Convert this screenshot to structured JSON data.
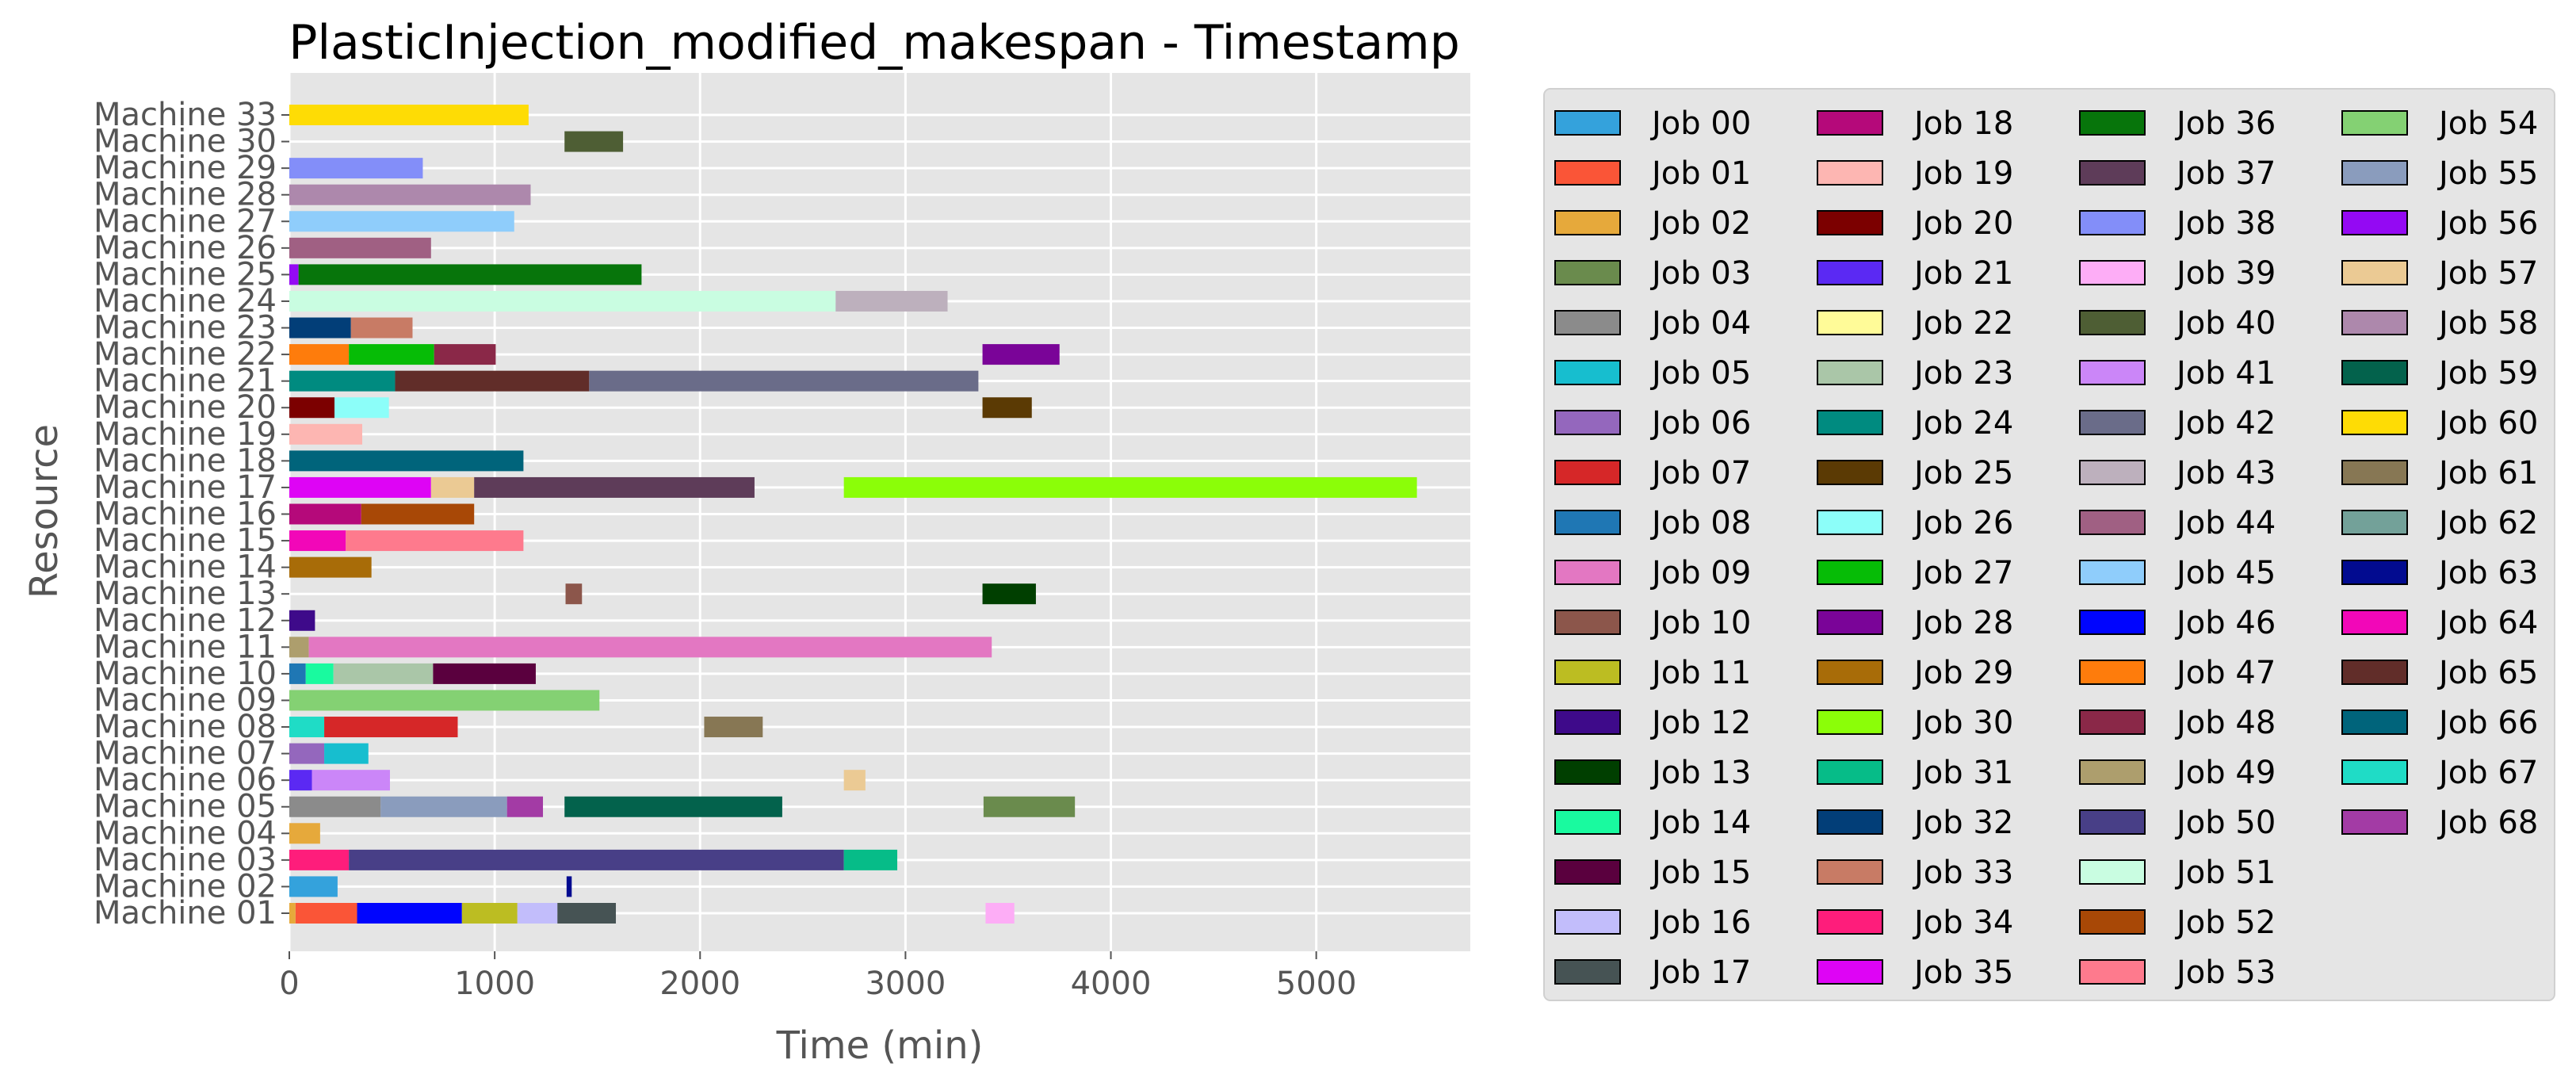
{
  "chart_data": {
    "type": "gantt",
    "title": "PlasticInjection_modified_makespan - Timestamp",
    "xlabel": "Time (min)",
    "ylabel": "Resource",
    "xlim": [
      0,
      5750
    ],
    "xticks": [
      "0",
      "1000",
      "2000",
      "3000",
      "4000",
      "5000"
    ],
    "grid": true,
    "legend_placement": "right",
    "resources": [
      "Machine 01",
      "Machine 02",
      "Machine 03",
      "Machine 04",
      "Machine 05",
      "Machine 06",
      "Machine 07",
      "Machine 08",
      "Machine 09",
      "Machine 10",
      "Machine 11",
      "Machine 12",
      "Machine 13",
      "Machine 14",
      "Machine 15",
      "Machine 16",
      "Machine 17",
      "Machine 18",
      "Machine 19",
      "Machine 20",
      "Machine 21",
      "Machine 22",
      "Machine 23",
      "Machine 24",
      "Machine 25",
      "Machine 26",
      "Machine 27",
      "Machine 28",
      "Machine 29",
      "Machine 30",
      "Machine 33"
    ],
    "jobs": [
      {
        "name": "Job 00",
        "color": "#34a2dc"
      },
      {
        "name": "Job 01",
        "color": "#fa5537"
      },
      {
        "name": "Job 02",
        "color": "#e6a93b"
      },
      {
        "name": "Job 03",
        "color": "#6a8b4d"
      },
      {
        "name": "Job 04",
        "color": "#8b8b8b"
      },
      {
        "name": "Job 05",
        "color": "#17becf"
      },
      {
        "name": "Job 06",
        "color": "#9467bd"
      },
      {
        "name": "Job 07",
        "color": "#d62728"
      },
      {
        "name": "Job 08",
        "color": "#1f77b4"
      },
      {
        "name": "Job 09",
        "color": "#e377c2"
      },
      {
        "name": "Job 10",
        "color": "#8c564b"
      },
      {
        "name": "Job 11",
        "color": "#bcbd22"
      },
      {
        "name": "Job 12",
        "color": "#3e0a8a"
      },
      {
        "name": "Job 13",
        "color": "#003f00"
      },
      {
        "name": "Job 14",
        "color": "#19fa9f"
      },
      {
        "name": "Job 15",
        "color": "#5a003e"
      },
      {
        "name": "Job 16",
        "color": "#c2bdfb"
      },
      {
        "name": "Job 17",
        "color": "#465354"
      },
      {
        "name": "Job 18",
        "color": "#b5097a"
      },
      {
        "name": "Job 19",
        "color": "#fdb6b2"
      },
      {
        "name": "Job 20",
        "color": "#7c0000"
      },
      {
        "name": "Job 21",
        "color": "#5b29f3"
      },
      {
        "name": "Job 22",
        "color": "#fffb98"
      },
      {
        "name": "Job 23",
        "color": "#aac6a8"
      },
      {
        "name": "Job 24",
        "color": "#008b80"
      },
      {
        "name": "Job 25",
        "color": "#5b3a04"
      },
      {
        "name": "Job 26",
        "color": "#8cfef9"
      },
      {
        "name": "Job 27",
        "color": "#06bc06"
      },
      {
        "name": "Job 28",
        "color": "#7a0498"
      },
      {
        "name": "Job 29",
        "color": "#a86c08"
      },
      {
        "name": "Job 30",
        "color": "#8bfe08"
      },
      {
        "name": "Job 31",
        "color": "#06bc88"
      },
      {
        "name": "Job 32",
        "color": "#023e78"
      },
      {
        "name": "Job 33",
        "color": "#c87b65"
      },
      {
        "name": "Job 34",
        "color": "#fe1d7b"
      },
      {
        "name": "Job 35",
        "color": "#de04f5"
      },
      {
        "name": "Job 36",
        "color": "#07750b"
      },
      {
        "name": "Job 37",
        "color": "#5e3c59"
      },
      {
        "name": "Job 38",
        "color": "#838ef9"
      },
      {
        "name": "Job 39",
        "color": "#fdadf6"
      },
      {
        "name": "Job 40",
        "color": "#4e5e34"
      },
      {
        "name": "Job 41",
        "color": "#cb86f8"
      },
      {
        "name": "Job 42",
        "color": "#6a6c89"
      },
      {
        "name": "Job 43",
        "color": "#bdb0bd"
      },
      {
        "name": "Job 44",
        "color": "#a06083"
      },
      {
        "name": "Job 45",
        "color": "#8fcdfb"
      },
      {
        "name": "Job 46",
        "color": "#0005fe"
      },
      {
        "name": "Job 47",
        "color": "#fe7c0c"
      },
      {
        "name": "Job 48",
        "color": "#8a2848"
      },
      {
        "name": "Job 49",
        "color": "#ad9e6d"
      },
      {
        "name": "Job 50",
        "color": "#483f87"
      },
      {
        "name": "Job 51",
        "color": "#c9fde1"
      },
      {
        "name": "Job 52",
        "color": "#a84806"
      },
      {
        "name": "Job 53",
        "color": "#fe7a8d"
      },
      {
        "name": "Job 54",
        "color": "#84d173"
      },
      {
        "name": "Job 55",
        "color": "#8a9cbd"
      },
      {
        "name": "Job 56",
        "color": "#9409f3"
      },
      {
        "name": "Job 57",
        "color": "#ebca94"
      },
      {
        "name": "Job 58",
        "color": "#ad88ac"
      },
      {
        "name": "Job 59",
        "color": "#03624c"
      },
      {
        "name": "Job 60",
        "color": "#fedc05"
      },
      {
        "name": "Job 61",
        "color": "#877754"
      },
      {
        "name": "Job 62",
        "color": "#73a199"
      },
      {
        "name": "Job 63",
        "color": "#020b90"
      },
      {
        "name": "Job 64",
        "color": "#f207b8"
      },
      {
        "name": "Job 65",
        "color": "#612d29"
      },
      {
        "name": "Job 66",
        "color": "#00647b"
      },
      {
        "name": "Job 67",
        "color": "#1fdcc6"
      },
      {
        "name": "Job 68",
        "color": "#a33ba5"
      }
    ],
    "tasks": [
      {
        "resource": "Machine 01",
        "job": "Job 17",
        "start": 1305,
        "end": 1590
      },
      {
        "resource": "Machine 01",
        "job": "Job 16",
        "start": 1110,
        "end": 1305
      },
      {
        "resource": "Machine 01",
        "job": "Job 11",
        "start": 840,
        "end": 1110
      },
      {
        "resource": "Machine 01",
        "job": "Job 46",
        "start": 330,
        "end": 840
      },
      {
        "resource": "Machine 01",
        "job": "Job 01",
        "start": 30,
        "end": 330
      },
      {
        "resource": "Machine 01",
        "job": "Job 02",
        "start": 0,
        "end": 30
      },
      {
        "resource": "Machine 01",
        "job": "Job 39",
        "start": 3390,
        "end": 3530
      },
      {
        "resource": "Machine 02",
        "job": "Job 00",
        "start": 0,
        "end": 235
      },
      {
        "resource": "Machine 02",
        "job": "Job 63",
        "start": 1350,
        "end": 1375
      },
      {
        "resource": "Machine 03",
        "job": "Job 34",
        "start": 0,
        "end": 290
      },
      {
        "resource": "Machine 03",
        "job": "Job 50",
        "start": 290,
        "end": 2700
      },
      {
        "resource": "Machine 03",
        "job": "Job 31",
        "start": 2700,
        "end": 2960
      },
      {
        "resource": "Machine 04",
        "job": "Job 02",
        "start": 0,
        "end": 150
      },
      {
        "resource": "Machine 05",
        "job": "Job 04",
        "start": 0,
        "end": 445
      },
      {
        "resource": "Machine 05",
        "job": "Job 55",
        "start": 445,
        "end": 1060
      },
      {
        "resource": "Machine 05",
        "job": "Job 68",
        "start": 1060,
        "end": 1235
      },
      {
        "resource": "Machine 05",
        "job": "Job 59",
        "start": 1340,
        "end": 2400
      },
      {
        "resource": "Machine 05",
        "job": "Job 03",
        "start": 3380,
        "end": 3825
      },
      {
        "resource": "Machine 06",
        "job": "Job 21",
        "start": 0,
        "end": 110
      },
      {
        "resource": "Machine 06",
        "job": "Job 41",
        "start": 110,
        "end": 490
      },
      {
        "resource": "Machine 06",
        "job": "Job 57",
        "start": 2700,
        "end": 2805
      },
      {
        "resource": "Machine 07",
        "job": "Job 06",
        "start": 0,
        "end": 170
      },
      {
        "resource": "Machine 07",
        "job": "Job 05",
        "start": 170,
        "end": 385
      },
      {
        "resource": "Machine 08",
        "job": "Job 67",
        "start": 0,
        "end": 170
      },
      {
        "resource": "Machine 08",
        "job": "Job 07",
        "start": 170,
        "end": 820
      },
      {
        "resource": "Machine 08",
        "job": "Job 61",
        "start": 2020,
        "end": 2305
      },
      {
        "resource": "Machine 09",
        "job": "Job 54",
        "start": 0,
        "end": 1510
      },
      {
        "resource": "Machine 10",
        "job": "Job 08",
        "start": 0,
        "end": 80
      },
      {
        "resource": "Machine 10",
        "job": "Job 14",
        "start": 80,
        "end": 215
      },
      {
        "resource": "Machine 10",
        "job": "Job 23",
        "start": 215,
        "end": 700
      },
      {
        "resource": "Machine 10",
        "job": "Job 15",
        "start": 700,
        "end": 1200
      },
      {
        "resource": "Machine 11",
        "job": "Job 49",
        "start": 0,
        "end": 95
      },
      {
        "resource": "Machine 11",
        "job": "Job 09",
        "start": 95,
        "end": 3420
      },
      {
        "resource": "Machine 12",
        "job": "Job 12",
        "start": 0,
        "end": 125
      },
      {
        "resource": "Machine 13",
        "job": "Job 10",
        "start": 1345,
        "end": 1425
      },
      {
        "resource": "Machine 13",
        "job": "Job 13",
        "start": 3375,
        "end": 3635
      },
      {
        "resource": "Machine 14",
        "job": "Job 29",
        "start": 0,
        "end": 400
      },
      {
        "resource": "Machine 15",
        "job": "Job 64",
        "start": 0,
        "end": 275
      },
      {
        "resource": "Machine 15",
        "job": "Job 53",
        "start": 275,
        "end": 1140
      },
      {
        "resource": "Machine 16",
        "job": "Job 18",
        "start": 0,
        "end": 350
      },
      {
        "resource": "Machine 16",
        "job": "Job 52",
        "start": 350,
        "end": 900
      },
      {
        "resource": "Machine 17",
        "job": "Job 35",
        "start": 0,
        "end": 690
      },
      {
        "resource": "Machine 17",
        "job": "Job 57",
        "start": 690,
        "end": 900
      },
      {
        "resource": "Machine 17",
        "job": "Job 37",
        "start": 900,
        "end": 2265
      },
      {
        "resource": "Machine 17",
        "job": "Job 30",
        "start": 2700,
        "end": 5490
      },
      {
        "resource": "Machine 18",
        "job": "Job 66",
        "start": 0,
        "end": 1140
      },
      {
        "resource": "Machine 19",
        "job": "Job 19",
        "start": 0,
        "end": 355
      },
      {
        "resource": "Machine 20",
        "job": "Job 20",
        "start": 0,
        "end": 220
      },
      {
        "resource": "Machine 20",
        "job": "Job 26",
        "start": 220,
        "end": 485
      },
      {
        "resource": "Machine 20",
        "job": "Job 25",
        "start": 3375,
        "end": 3615
      },
      {
        "resource": "Machine 21",
        "job": "Job 24",
        "start": 0,
        "end": 515
      },
      {
        "resource": "Machine 21",
        "job": "Job 65",
        "start": 515,
        "end": 1460
      },
      {
        "resource": "Machine 21",
        "job": "Job 42",
        "start": 1460,
        "end": 3355
      },
      {
        "resource": "Machine 22",
        "job": "Job 47",
        "start": 0,
        "end": 290
      },
      {
        "resource": "Machine 22",
        "job": "Job 27",
        "start": 290,
        "end": 705
      },
      {
        "resource": "Machine 22",
        "job": "Job 48",
        "start": 705,
        "end": 1005
      },
      {
        "resource": "Machine 22",
        "job": "Job 28",
        "start": 3375,
        "end": 3750
      },
      {
        "resource": "Machine 23",
        "job": "Job 32",
        "start": 0,
        "end": 300
      },
      {
        "resource": "Machine 23",
        "job": "Job 33",
        "start": 300,
        "end": 600
      },
      {
        "resource": "Machine 24",
        "job": "Job 51",
        "start": 0,
        "end": 2660
      },
      {
        "resource": "Machine 24",
        "job": "Job 43",
        "start": 2660,
        "end": 3205
      },
      {
        "resource": "Machine 25",
        "job": "Job 56",
        "start": 0,
        "end": 45
      },
      {
        "resource": "Machine 25",
        "job": "Job 36",
        "start": 45,
        "end": 1715
      },
      {
        "resource": "Machine 26",
        "job": "Job 44",
        "start": 0,
        "end": 690
      },
      {
        "resource": "Machine 27",
        "job": "Job 45",
        "start": 0,
        "end": 1095
      },
      {
        "resource": "Machine 28",
        "job": "Job 58",
        "start": 0,
        "end": 1175
      },
      {
        "resource": "Machine 29",
        "job": "Job 38",
        "start": 0,
        "end": 650
      },
      {
        "resource": "Machine 30",
        "job": "Job 40",
        "start": 1340,
        "end": 1625
      },
      {
        "resource": "Machine 33",
        "job": "Job 60",
        "start": 0,
        "end": 1165
      }
    ]
  }
}
